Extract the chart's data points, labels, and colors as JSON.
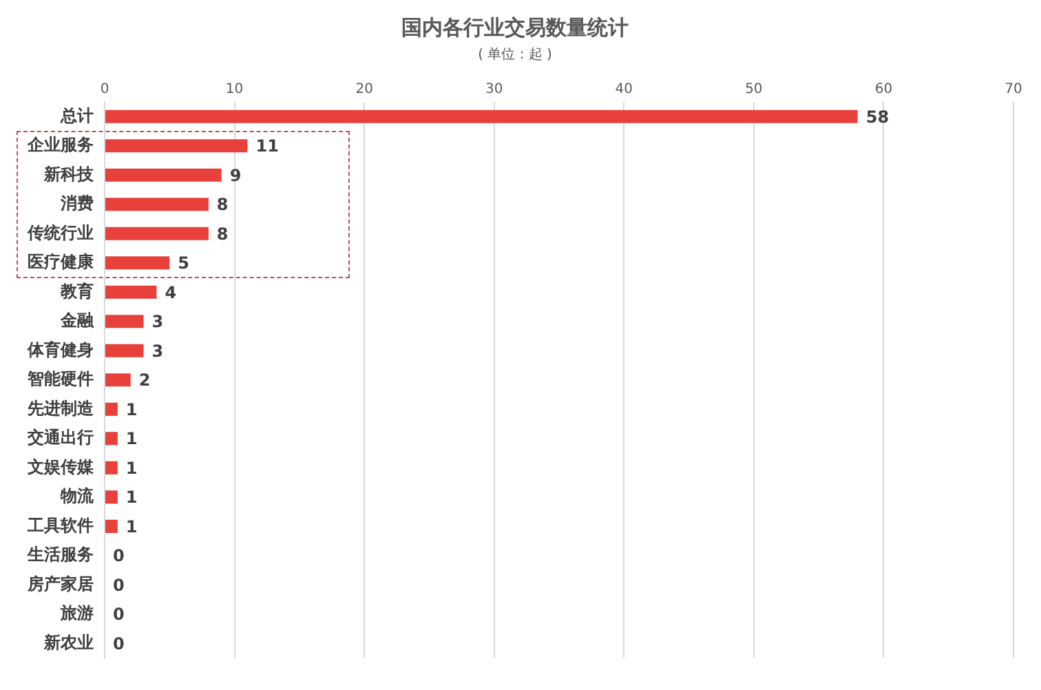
{
  "chart_data": {
    "type": "bar",
    "orientation": "horizontal",
    "title": "国内各行业交易数量统计",
    "subtitle": "( 单位 : 起 )",
    "categories": [
      "总计",
      "企业服务",
      "新科技",
      "消费",
      "传统行业",
      "医疗健康",
      "教育",
      "金融",
      "体育健身",
      "智能硬件",
      "先进制造",
      "交通出行",
      "文娱传媒",
      "物流",
      "工具软件",
      "生活服务",
      "房产家居",
      "旅游",
      "新农业"
    ],
    "values": [
      58,
      11,
      9,
      8,
      8,
      5,
      4,
      3,
      3,
      2,
      1,
      1,
      1,
      1,
      1,
      0,
      0,
      0,
      0
    ],
    "color": "#e8413b",
    "xlim": [
      0,
      70
    ],
    "xticks": [
      0,
      10,
      20,
      30,
      40,
      50,
      60,
      70
    ],
    "grid": "x",
    "data_labels": true,
    "legend": false
  }
}
